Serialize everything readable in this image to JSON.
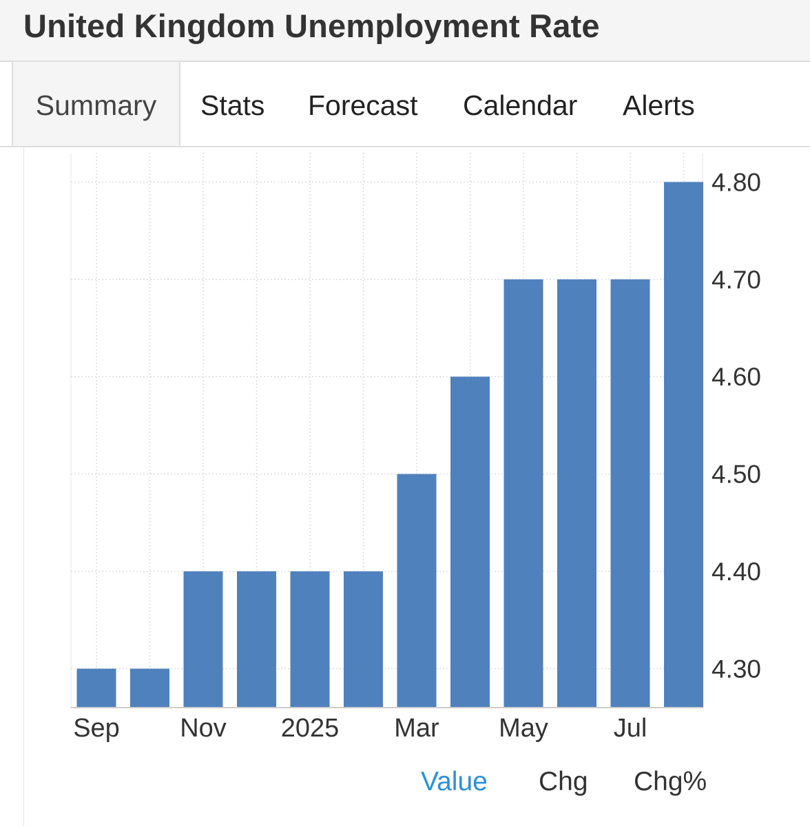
{
  "page": {
    "title": "United Kingdom Unemployment Rate"
  },
  "tabs": [
    {
      "label": "Summary",
      "active": true
    },
    {
      "label": "Stats",
      "active": false
    },
    {
      "label": "Forecast",
      "active": false
    },
    {
      "label": "Calendar",
      "active": false
    },
    {
      "label": "Alerts",
      "active": false
    }
  ],
  "toggles": [
    {
      "label": "Value",
      "active": true
    },
    {
      "label": "Chg",
      "active": false
    },
    {
      "label": "Chg%",
      "active": false
    }
  ],
  "colors": {
    "bar": "#4f81bd",
    "active_toggle": "#2b90d9",
    "grid": "#dddddd"
  },
  "chart_data": {
    "type": "bar",
    "title": "",
    "xlabel": "",
    "ylabel": "",
    "categories": [
      "2024-09",
      "2024-10",
      "2024-11",
      "2024-12",
      "2025-01",
      "2025-02",
      "2025-03",
      "2025-04",
      "2025-05",
      "2025-06",
      "2025-07",
      "2025-08"
    ],
    "values": [
      4.3,
      4.3,
      4.4,
      4.4,
      4.4,
      4.4,
      4.5,
      4.6,
      4.7,
      4.7,
      4.7,
      4.8
    ],
    "x_tick_labels": [
      "Sep",
      "Nov",
      "2025",
      "Mar",
      "May",
      "Jul"
    ],
    "x_tick_categories": [
      "2024-09",
      "2024-11",
      "2025-01",
      "2025-03",
      "2025-05",
      "2025-07"
    ],
    "y_tick_labels": [
      "4.30",
      "4.40",
      "4.50",
      "4.60",
      "4.70",
      "4.80"
    ],
    "y_ticks": [
      4.3,
      4.4,
      4.5,
      4.6,
      4.7,
      4.8
    ],
    "ylim": [
      4.26,
      4.83
    ],
    "y_axis_side": "right",
    "grid": true
  }
}
